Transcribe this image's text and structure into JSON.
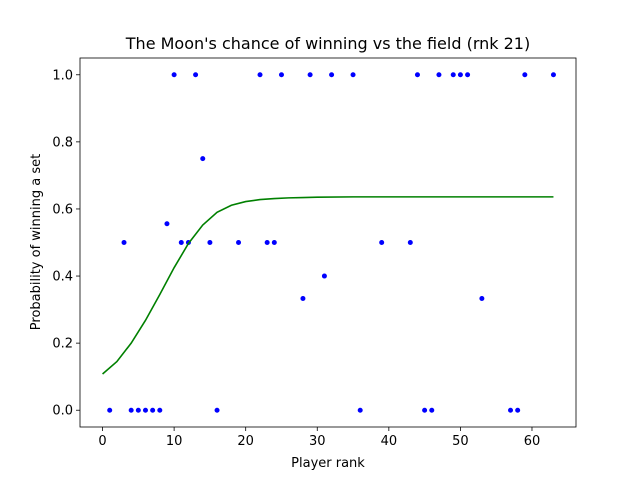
{
  "chart_data": {
    "type": "scatter",
    "title": "The Moon's chance of winning vs the field (rnk 21)",
    "xlabel": "Player rank",
    "ylabel": "Probability of winning a set",
    "xlim": [
      -3.15,
      66.15
    ],
    "ylim": [
      -0.05,
      1.05
    ],
    "xticks": [
      0,
      10,
      20,
      30,
      40,
      50,
      60
    ],
    "yticks": [
      0.0,
      0.2,
      0.4,
      0.6,
      0.8,
      1.0
    ],
    "xtick_labels": [
      "0",
      "10",
      "20",
      "30",
      "40",
      "50",
      "60"
    ],
    "ytick_labels": [
      "0.0",
      "0.2",
      "0.4",
      "0.6",
      "0.8",
      "1.0"
    ],
    "grid": false,
    "series": [
      {
        "kind": "points",
        "color": "#0000ff",
        "points": [
          [
            1,
            0.0
          ],
          [
            3,
            0.5
          ],
          [
            4,
            0.0
          ],
          [
            5,
            0.0
          ],
          [
            6,
            0.0
          ],
          [
            7,
            0.0
          ],
          [
            8,
            0.0
          ],
          [
            9,
            0.556
          ],
          [
            10,
            1.0
          ],
          [
            11,
            0.5
          ],
          [
            12,
            0.5
          ],
          [
            13,
            1.0
          ],
          [
            14,
            0.75
          ],
          [
            15,
            0.5
          ],
          [
            16,
            0.0
          ],
          [
            19,
            0.5
          ],
          [
            22,
            1.0
          ],
          [
            23,
            0.5
          ],
          [
            24,
            0.5
          ],
          [
            25,
            1.0
          ],
          [
            28,
            0.333
          ],
          [
            29,
            1.0
          ],
          [
            31,
            0.4
          ],
          [
            32,
            1.0
          ],
          [
            35,
            1.0
          ],
          [
            36,
            0.0
          ],
          [
            39,
            0.5
          ],
          [
            43,
            0.5
          ],
          [
            44,
            1.0
          ],
          [
            45,
            0.0
          ],
          [
            46,
            0.0
          ],
          [
            47,
            1.0
          ],
          [
            49,
            1.0
          ],
          [
            50,
            1.0
          ],
          [
            51,
            1.0
          ],
          [
            53,
            0.333
          ],
          [
            57,
            0.0
          ],
          [
            58,
            0.0
          ],
          [
            59,
            1.0
          ],
          [
            63,
            1.0
          ]
        ]
      },
      {
        "kind": "curve",
        "color": "#008000",
        "points": [
          [
            0,
            0.108
          ],
          [
            2,
            0.145
          ],
          [
            4,
            0.2
          ],
          [
            6,
            0.268
          ],
          [
            8,
            0.345
          ],
          [
            10,
            0.425
          ],
          [
            12,
            0.497
          ],
          [
            14,
            0.552
          ],
          [
            16,
            0.59
          ],
          [
            18,
            0.611
          ],
          [
            20,
            0.622
          ],
          [
            22,
            0.628
          ],
          [
            24,
            0.631
          ],
          [
            26,
            0.633
          ],
          [
            28,
            0.634
          ],
          [
            30,
            0.635
          ],
          [
            35,
            0.636
          ],
          [
            40,
            0.636
          ],
          [
            45,
            0.636
          ],
          [
            50,
            0.636
          ],
          [
            55,
            0.636
          ],
          [
            60,
            0.636
          ],
          [
            63,
            0.636
          ]
        ]
      }
    ]
  }
}
